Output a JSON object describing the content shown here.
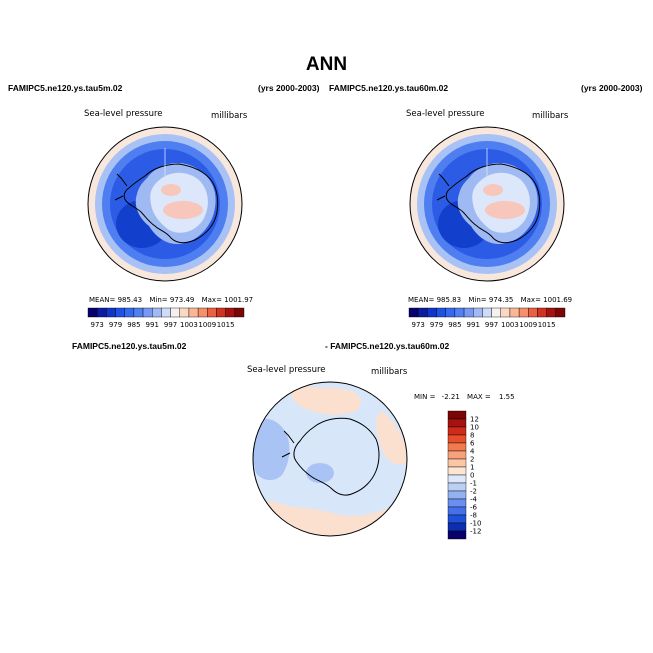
{
  "page": {
    "title": "ANN"
  },
  "panels": [
    {
      "case": "FAMIPC5.ne120.ys.tau5m.02",
      "years": "(yrs 2000-2003)",
      "variable": "Sea-level pressure",
      "units": "millibars",
      "stats": {
        "mean_label": "MEAN=",
        "mean": "985.43",
        "min_label": "Min=",
        "min": "973.49",
        "max_label": "Max=",
        "max": "1001.97"
      },
      "colorbar": {
        "ticks": [
          "973",
          "979",
          "985",
          "991",
          "997",
          "1003",
          "1009",
          "1015"
        ],
        "colors": [
          "#08006b",
          "#0a1da0",
          "#0f36c9",
          "#1e52e3",
          "#3569ef",
          "#5180f2",
          "#7799f3",
          "#a3b9f5",
          "#cfdcf9",
          "#f6f0ee",
          "#fcd8c2",
          "#fbb695",
          "#f5906a",
          "#ea6041",
          "#cf3322",
          "#a51210",
          "#7a0606"
        ]
      }
    },
    {
      "case": "FAMIPC5.ne120.ys.tau60m.02",
      "years": "(yrs 2000-2003)",
      "variable": "Sea-level pressure",
      "units": "millibars",
      "stats": {
        "mean_label": "MEAN=",
        "mean": "985.83",
        "min_label": "Min=",
        "min": "974.35",
        "max_label": "Max=",
        "max": "1001.69"
      },
      "colorbar": {
        "ticks": [
          "973",
          "979",
          "985",
          "991",
          "997",
          "1003",
          "1009",
          "1015"
        ],
        "colors": [
          "#08006b",
          "#0a1da0",
          "#0f36c9",
          "#1e52e3",
          "#3569ef",
          "#5180f2",
          "#7799f3",
          "#a3b9f5",
          "#cfdcf9",
          "#f6f0ee",
          "#fcd8c2",
          "#fbb695",
          "#f5906a",
          "#ea6041",
          "#cf3322",
          "#a51210",
          "#7a0606"
        ]
      }
    }
  ],
  "difference": {
    "case_a": "FAMIPC5.ne120.ys.tau5m.02",
    "case_b": "- FAMIPC5.ne120.ys.tau60m.02",
    "variable": "Sea-level pressure",
    "units": "millibars",
    "stats": {
      "min_label": "MIN =",
      "min": "-2.21",
      "max_label": "MAX =",
      "max": "1.55"
    },
    "colorbar": {
      "ticks": [
        "12",
        "10",
        "8",
        "6",
        "4",
        "2",
        "1",
        "0",
        "-1",
        "-2",
        "-4",
        "-6",
        "-8",
        "-10",
        "-12"
      ],
      "colors": [
        "#7a0606",
        "#a51210",
        "#cf2a1a",
        "#e84e2c",
        "#f27a4f",
        "#f8a27c",
        "#fbc6a6",
        "#fde4d3",
        "#dde9fb",
        "#bcd0f6",
        "#94b2f2",
        "#6a8ff0",
        "#4470ea",
        "#2150d8",
        "#0b2fb0",
        "#08006b"
      ]
    }
  },
  "map_colors": {
    "ocean_far": "#f8e7dd",
    "ring_outer": "#a8c2f5",
    "ring_mid": "#4f7ef0",
    "ring_inner": "#2c5ce6",
    "trough": "#123fcc",
    "ice_edge": "#9fb9f2",
    "plateau": "#dde7fb",
    "high": "#f6c7ba",
    "diff_bg": "#d8e6fa",
    "diff_blue": "#a9c4f4",
    "diff_pink": "#fbe0d0"
  }
}
